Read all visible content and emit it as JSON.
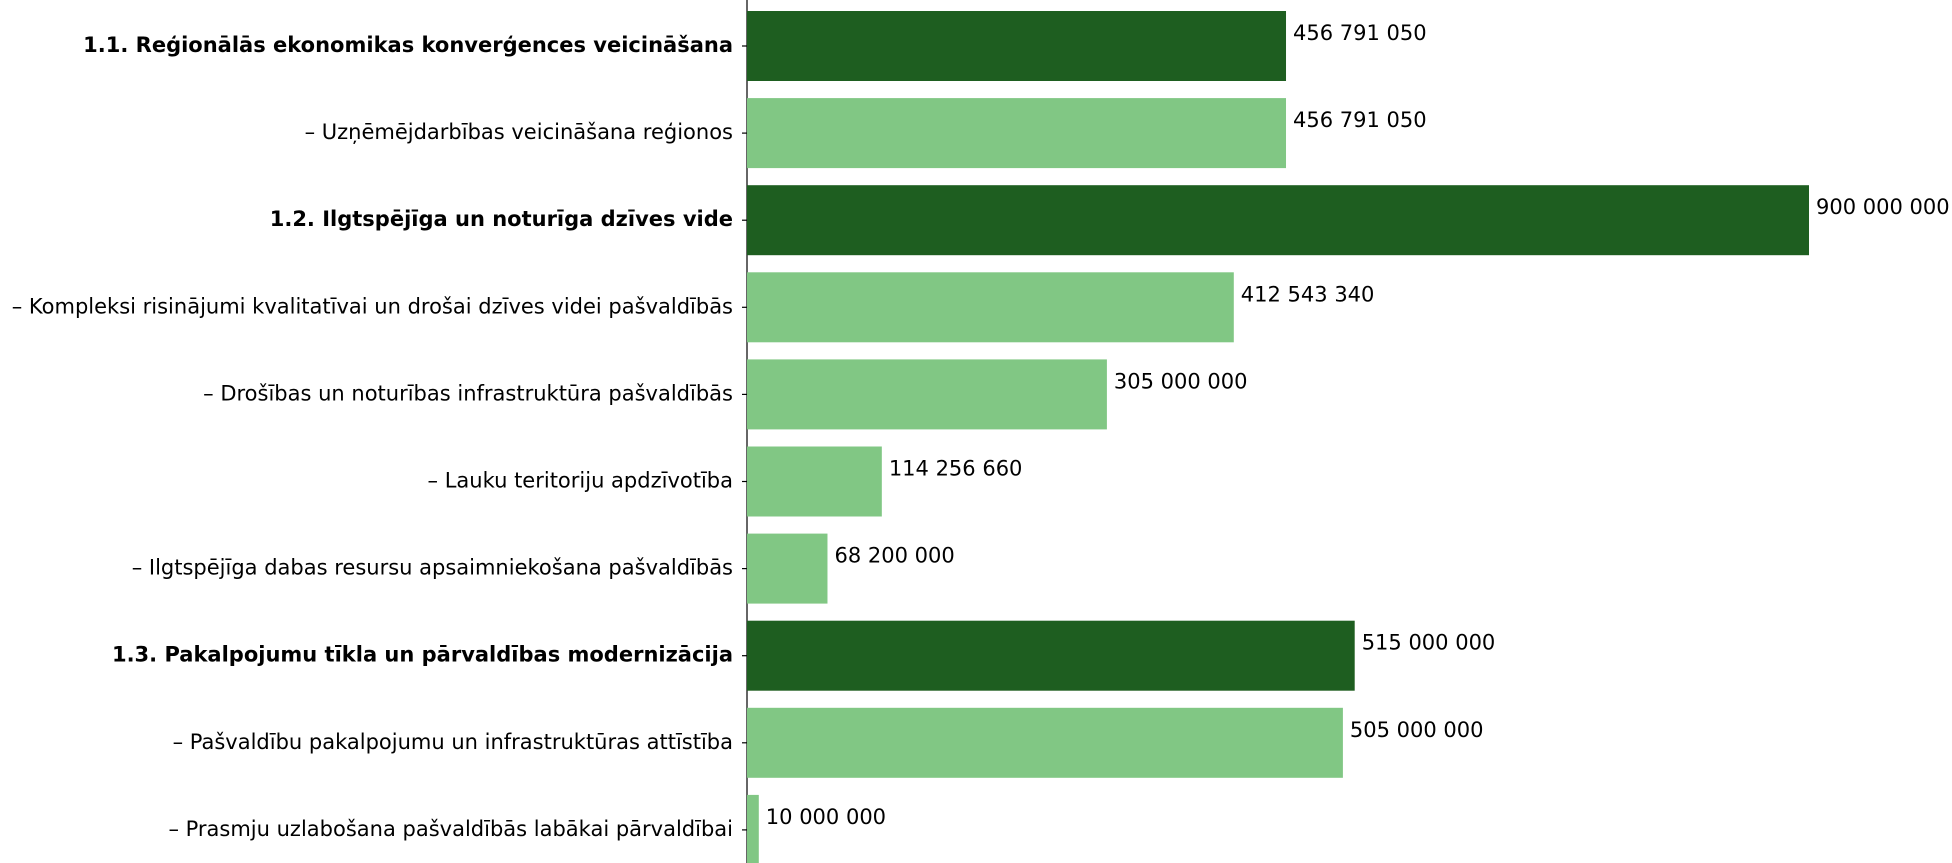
{
  "chart_data": {
    "type": "barh",
    "categories": [
      "1.1. Reģionālās ekonomikas konverģences veicināšana",
      "– Uzņēmējdarbības veicināšana reģionos",
      "1.2. Ilgtspējīga un noturīga dzīves vide",
      "– Kompleksi risinājumi kvalitatīvai un drošai dzīves videi pašvaldībās",
      "– Drošības un noturības infrastruktūra pašvaldībās",
      "– Lauku teritoriju apdzīvotība",
      "– Ilgtspējīga dabas resursu apsaimniekošana pašvaldībās",
      "1.3. Pakalpojumu tīkla un pārvaldības modernizācija",
      "– Pašvaldību pakalpojumu un infrastruktūras attīstība",
      "– Prasmju uzlabošana pašvaldībās labākai pārvaldībai"
    ],
    "values": [
      456791050,
      456791050,
      900000000,
      412543340,
      305000000,
      114256660,
      68200000,
      515000000,
      505000000,
      10000000
    ],
    "value_labels": [
      "456 791 050",
      "456 791 050",
      "900 000 000",
      "412 543 340",
      "305 000 000",
      "114 256 660",
      "68 200 000",
      "515 000 000",
      "505 000 000",
      "10 000 000"
    ],
    "colors": [
      "#1e5e20",
      "#81c784",
      "#1e5e20",
      "#81c784",
      "#81c784",
      "#81c784",
      "#81c784",
      "#1e5e20",
      "#81c784",
      "#81c784"
    ],
    "bold": [
      true,
      false,
      true,
      false,
      false,
      false,
      false,
      true,
      false,
      false
    ]
  }
}
